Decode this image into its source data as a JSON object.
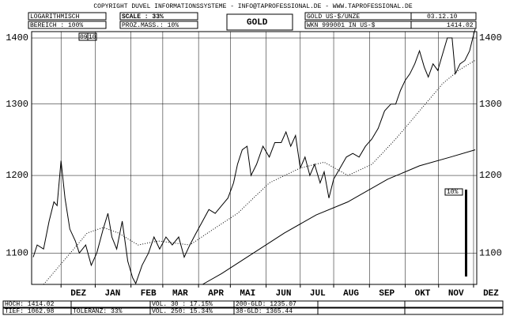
{
  "header": {
    "copyright": "COPYRIGHT DUVEL INFORMATIONSSYSTEME - INFO@TAPROFESSIONAL.DE - WWW.TAPROFESSIONAL.DE",
    "scale_mode": "LOGARITHMISCH",
    "range": "BEREICH : 100%",
    "scale": "SCALE : 33%",
    "percent": "PROZ.MASS.: 10%",
    "name": "GOLD",
    "unit": "GOLD US-$/UNZE",
    "wkn": "WKN 999001 IN US-$",
    "date": "03.12.10",
    "last": "1414.02"
  },
  "footer": {
    "high": "HOCH: 1414.02",
    "low": "TIEF: 1062.98",
    "tolerance": "TOLERANZ: 33%",
    "vol30": "VOL. 30 : 17.15%",
    "vol250": "VOL. 250: 15.34%",
    "gld200": "200-GLD: 1235.07",
    "gld38": "38-GLD: 1365.44"
  },
  "chart_data": {
    "type": "line",
    "log_y": true,
    "grid": true,
    "years": [
      "09",
      "10"
    ],
    "scale_bar_label": "10%",
    "xlim": [
      0,
      56
    ],
    "ylim": [
      1062,
      1410
    ],
    "yticks": [
      1100,
      1200,
      1300,
      1400
    ],
    "xticks": [
      {
        "value": 3.7,
        "label": "DEZ"
      },
      {
        "value": 8,
        "label": "JAN"
      },
      {
        "value": 12.5,
        "label": "FEB"
      },
      {
        "value": 16.5,
        "label": "MAR"
      },
      {
        "value": 21,
        "label": "APR"
      },
      {
        "value": 25,
        "label": "MAI"
      },
      {
        "value": 29.5,
        "label": "JUN"
      },
      {
        "value": 33.8,
        "label": "JUL"
      },
      {
        "value": 38,
        "label": "AUG"
      },
      {
        "value": 42.5,
        "label": "SEP"
      },
      {
        "value": 47,
        "label": "OKT"
      },
      {
        "value": 51.2,
        "label": "NOV"
      },
      {
        "value": 55.6,
        "label": "DEZ"
      }
    ],
    "series": [
      {
        "color": "#000000",
        "dashed": false,
        "x": [
          0.2,
          0.7,
          1.5,
          2.2,
          2.8,
          3.2,
          3.7,
          4.2,
          4.8,
          5.5,
          6.0,
          6.8,
          7.5,
          8.2,
          9.0,
          9.6,
          10.1,
          10.7,
          11.4,
          12.1,
          12.7,
          13.1,
          13.9,
          14.7,
          15.4,
          16.1,
          16.9,
          17.7,
          18.5,
          19.2,
          19.9,
          20.7,
          21.5,
          22.3,
          23.1,
          23.9,
          24.7,
          25.4,
          25.9,
          26.5,
          27.1,
          27.6,
          28.3,
          29.1,
          29.9,
          30.6,
          31.4,
          32.0,
          32.6,
          33.2,
          33.8,
          34.4,
          35.0,
          35.6,
          36.3,
          36.8,
          37.4,
          38.0,
          38.8,
          39.6,
          40.4,
          41.2,
          42.0,
          42.8,
          43.6,
          44.4,
          45.2,
          45.8,
          46.4,
          47.0,
          47.6,
          48.2,
          48.8,
          49.4,
          49.9,
          50.5,
          51.1,
          51.7,
          52.3,
          52.9,
          53.3,
          53.9,
          54.5,
          55.1,
          55.5,
          55.8
        ],
        "values": [
          1095,
          1110,
          1105,
          1140,
          1165,
          1160,
          1220,
          1170,
          1130,
          1115,
          1100,
          1110,
          1085,
          1100,
          1130,
          1150,
          1120,
          1105,
          1140,
          1090,
          1070,
          1063,
          1085,
          1100,
          1120,
          1105,
          1120,
          1110,
          1120,
          1095,
          1110,
          1125,
          1140,
          1155,
          1150,
          1160,
          1170,
          1190,
          1215,
          1235,
          1240,
          1200,
          1215,
          1240,
          1225,
          1245,
          1245,
          1260,
          1240,
          1255,
          1210,
          1225,
          1200,
          1215,
          1190,
          1205,
          1170,
          1195,
          1210,
          1225,
          1230,
          1225,
          1240,
          1250,
          1265,
          1290,
          1300,
          1300,
          1320,
          1335,
          1345,
          1360,
          1380,
          1355,
          1340,
          1360,
          1350,
          1375,
          1400,
          1400,
          1345,
          1360,
          1365,
          1380,
          1400,
          1414.02
        ]
      },
      {
        "color": "#000000",
        "dashed": false,
        "x": [
          21.5,
          23.9,
          27.9,
          31.8,
          35.8,
          39.8,
          44.8,
          48.8,
          52.7,
          55.8
        ],
        "values": [
          1062,
          1075,
          1100,
          1125,
          1148,
          1165,
          1195,
          1213,
          1225,
          1235.07
        ]
      },
      {
        "color": "#000000",
        "dashed": true,
        "x": [
          1.5,
          4.0,
          7.0,
          9.0,
          10.9,
          13.4,
          15.9,
          19.9,
          22.9,
          25.9,
          29.9,
          33.8,
          36.8,
          39.8,
          42.8,
          45.8,
          48.8,
          51.7,
          53.7,
          55.8
        ],
        "values": [
          1062,
          1090,
          1125,
          1132,
          1125,
          1110,
          1115,
          1110,
          1130,
          1150,
          1190,
          1210,
          1218,
          1200,
          1215,
          1250,
          1290,
          1330,
          1350,
          1365.44
        ]
      }
    ]
  }
}
